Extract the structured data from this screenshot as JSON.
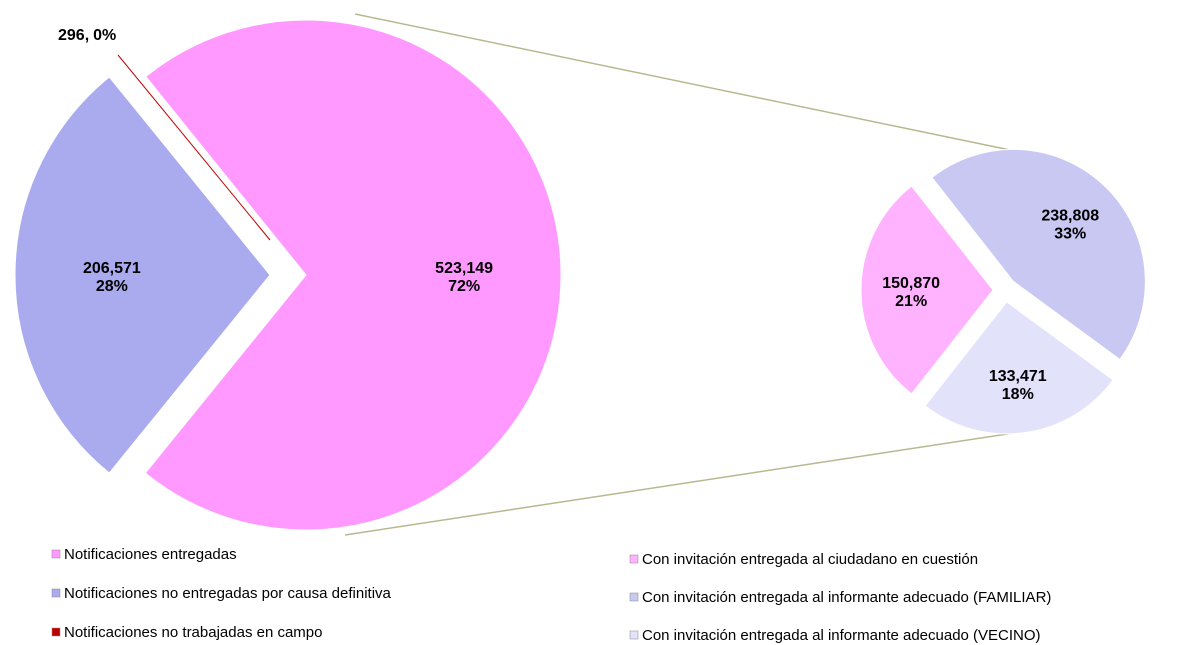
{
  "chart_data": [
    {
      "type": "pie",
      "categories": [
        "Notificaciones entregadas",
        "Notificaciones no entregadas por causa definitiva",
        "Notificaciones no trabajadas en campo"
      ],
      "values": [
        523149,
        206571,
        296
      ],
      "value_labels": [
        "523,149",
        "206,571",
        "296,"
      ],
      "percentages": [
        72,
        28,
        0
      ],
      "percentage_labels": [
        "72%",
        "28%",
        "0%"
      ],
      "colors": [
        "#ff99ff",
        "#aaaaee",
        "#c00000"
      ]
    },
    {
      "type": "pie",
      "categories": [
        "Con invitación entregada al ciudadano en cuestión",
        "Con invitación entregada al informante adecuado (FAMILIAR)",
        "Con invitación entregada al informante adecuado (VECINO)"
      ],
      "values": [
        150870,
        238808,
        133471
      ],
      "value_labels": [
        "150,870",
        "238,808",
        "133,471"
      ],
      "percentages": [
        21,
        33,
        18
      ],
      "percentage_labels": [
        "21%",
        "33%",
        "18%"
      ],
      "colors": [
        "#ffb3ff",
        "#c8c8f2",
        "#e2e2fa"
      ]
    }
  ]
}
